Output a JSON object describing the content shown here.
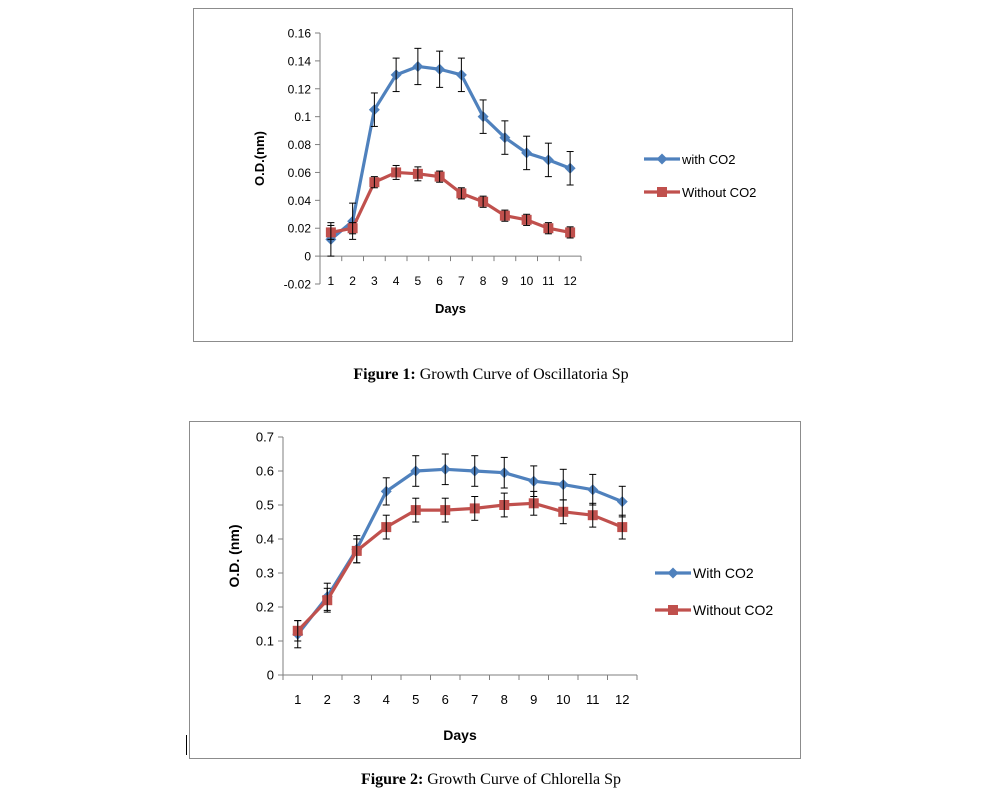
{
  "figures": [
    {
      "caption_label": "Figure 1:",
      "caption_text": " Growth Curve of Oscillatoria Sp"
    },
    {
      "caption_label": "Figure 2:",
      "caption_text": " Growth Curve of Chlorella Sp"
    }
  ],
  "colors": {
    "with_co2": "#4f81bd",
    "without_co2": "#c0504d",
    "axis": "#7f7f7f",
    "text": "#000000"
  },
  "chart_data": [
    {
      "type": "line",
      "title": "",
      "xlabel": "Days",
      "ylabel": "O.D.(nm)",
      "x": [
        1,
        2,
        3,
        4,
        5,
        6,
        7,
        8,
        9,
        10,
        11,
        12
      ],
      "ylim": [
        -0.02,
        0.16
      ],
      "yticks": [
        -0.02,
        0,
        0.02,
        0.04,
        0.06,
        0.08,
        0.1,
        0.12,
        0.14,
        0.16
      ],
      "ytick_labels": [
        "-0.02",
        "0",
        "0.02",
        "0.04",
        "0.06",
        "0.08",
        "0.1",
        "0.12",
        "0.14",
        "0.16"
      ],
      "grid": false,
      "legend": "right",
      "series": [
        {
          "name": "with CO2",
          "marker": "diamond",
          "values": [
            0.012,
            0.025,
            0.105,
            0.13,
            0.136,
            0.134,
            0.13,
            0.1,
            0.085,
            0.074,
            0.069,
            0.063
          ],
          "error": [
            0.012,
            0.013,
            0.012,
            0.012,
            0.013,
            0.013,
            0.012,
            0.012,
            0.012,
            0.012,
            0.012,
            0.012
          ]
        },
        {
          "name": "Without CO2",
          "marker": "square",
          "values": [
            0.017,
            0.02,
            0.053,
            0.06,
            0.059,
            0.057,
            0.045,
            0.039,
            0.029,
            0.026,
            0.02,
            0.017
          ],
          "error": [
            0.005,
            0.004,
            0.004,
            0.005,
            0.005,
            0.004,
            0.004,
            0.004,
            0.004,
            0.004,
            0.004,
            0.004
          ]
        }
      ]
    },
    {
      "type": "line",
      "title": "",
      "xlabel": "Days",
      "ylabel": "O.D. (nm)",
      "x": [
        1,
        2,
        3,
        4,
        5,
        6,
        7,
        8,
        9,
        10,
        11,
        12
      ],
      "ylim": [
        0,
        0.7
      ],
      "yticks": [
        0,
        0.1,
        0.2,
        0.3,
        0.4,
        0.5,
        0.6,
        0.7
      ],
      "ytick_labels": [
        "0",
        "0.1",
        "0.2",
        "0.3",
        "0.4",
        "0.5",
        "0.6",
        "0.7"
      ],
      "grid": false,
      "legend": "right",
      "series": [
        {
          "name": "With CO2",
          "marker": "diamond",
          "values": [
            0.12,
            0.23,
            0.37,
            0.54,
            0.6,
            0.605,
            0.6,
            0.595,
            0.57,
            0.56,
            0.545,
            0.51
          ],
          "error": [
            0.04,
            0.04,
            0.04,
            0.04,
            0.045,
            0.045,
            0.045,
            0.045,
            0.045,
            0.045,
            0.045,
            0.045
          ]
        },
        {
          "name": "Without CO2",
          "marker": "square",
          "values": [
            0.13,
            0.22,
            0.365,
            0.435,
            0.485,
            0.485,
            0.49,
            0.5,
            0.505,
            0.48,
            0.47,
            0.435
          ],
          "error": [
            0.03,
            0.035,
            0.035,
            0.035,
            0.035,
            0.035,
            0.035,
            0.035,
            0.035,
            0.035,
            0.035,
            0.035
          ]
        }
      ]
    }
  ]
}
